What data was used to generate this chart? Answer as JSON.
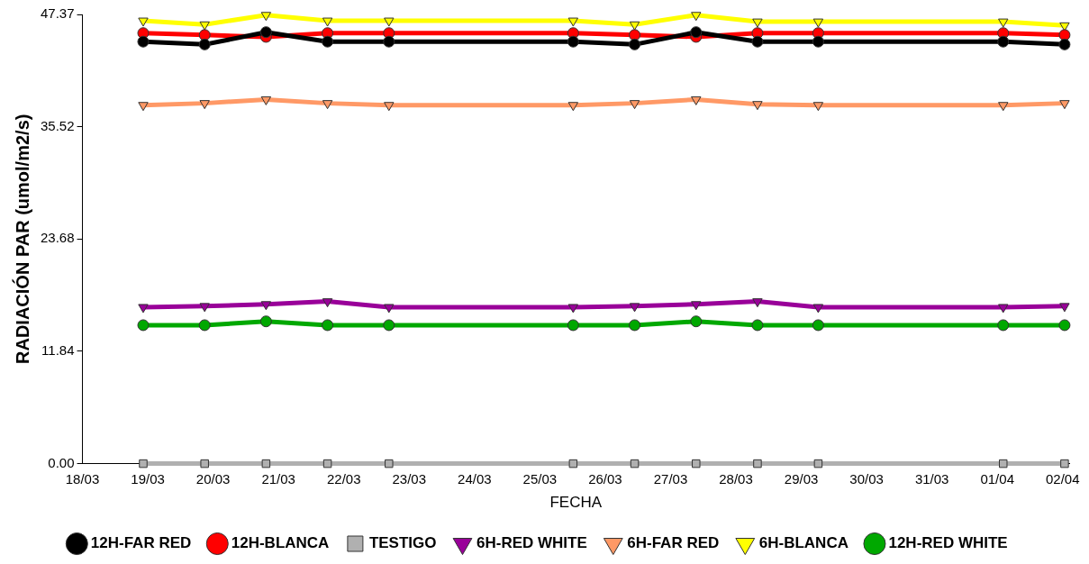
{
  "chart_data": {
    "type": "line",
    "xlabel": "FECHA",
    "ylabel": "RADIACIÓN PAR (umol/m2/s)",
    "x": [
      "--03-18T22:19",
      "--03-19T20:53",
      "--03-20T19:26",
      "--03-21T18:00",
      "--03-22T16:34",
      "--03-25T12:14",
      "--03-26T10:48",
      "--03-27T09:22",
      "--03-28T07:55",
      "--03-29T06:14",
      "--04-01T02:10",
      "--04-02T00:43"
    ],
    "xlim": [
      "--03-18",
      "--04-02T02:24"
    ],
    "xticks": [
      {
        "value": "--03-18",
        "label": "18/03"
      },
      {
        "value": "--03-19",
        "label": "19/03"
      },
      {
        "value": "--03-20",
        "label": "20/03"
      },
      {
        "value": "--03-21",
        "label": "21/03"
      },
      {
        "value": "--03-22",
        "label": "22/03"
      },
      {
        "value": "--03-23",
        "label": "23/03"
      },
      {
        "value": "--03-24",
        "label": "24/03"
      },
      {
        "value": "--03-25",
        "label": "25/03"
      },
      {
        "value": "--03-26",
        "label": "26/03"
      },
      {
        "value": "--03-27",
        "label": "27/03"
      },
      {
        "value": "--03-28",
        "label": "28/03"
      },
      {
        "value": "--03-29",
        "label": "29/03"
      },
      {
        "value": "--03-30",
        "label": "30/03"
      },
      {
        "value": "--03-31",
        "label": "31/03"
      },
      {
        "value": "--04-01",
        "label": "01/04"
      },
      {
        "value": "--04-02",
        "label": "02/04"
      }
    ],
    "ylim": [
      0,
      47.37
    ],
    "yticks": [
      {
        "value": 0,
        "label": "0.00"
      },
      11.84,
      23.68,
      35.52,
      47.37
    ],
    "grid": false,
    "legend": "bottom",
    "series": [
      {
        "name": "12H-RED WHITE",
        "color": "#00a800",
        "marker": "circle",
        "values": [
          14.6,
          14.6,
          15.0,
          14.6,
          14.6,
          14.6,
          14.6,
          15.0,
          14.6,
          14.6,
          14.6,
          14.6
        ]
      },
      {
        "name": "6H-BLANCA",
        "color": "#ffff00",
        "marker": "triangle",
        "values": [
          46.7,
          46.3,
          47.3,
          46.7,
          46.7,
          46.7,
          46.3,
          47.3,
          46.6,
          46.6,
          46.6,
          46.2
        ]
      },
      {
        "name": "6H-FAR RED",
        "color": "#ff9966",
        "marker": "triangle",
        "values": [
          37.8,
          38.0,
          38.4,
          38.0,
          37.8,
          37.8,
          38.0,
          38.4,
          37.9,
          37.8,
          37.8,
          38.0
        ]
      },
      {
        "name": "6H-RED WHITE",
        "color": "#990099",
        "marker": "triangle",
        "values": [
          16.5,
          16.6,
          16.8,
          17.1,
          16.5,
          16.5,
          16.6,
          16.8,
          17.1,
          16.5,
          16.5,
          16.6
        ]
      },
      {
        "name": "TESTIGO",
        "color": "#b0b0b0",
        "marker": "square",
        "values": [
          0,
          0,
          0,
          0,
          0,
          0,
          0,
          0,
          0,
          0,
          0,
          0
        ]
      },
      {
        "name": "12H-BLANCA",
        "color": "#ff0000",
        "marker": "circle",
        "values": [
          45.4,
          45.2,
          45.0,
          45.4,
          45.4,
          45.4,
          45.2,
          45.0,
          45.4,
          45.4,
          45.4,
          45.2
        ]
      },
      {
        "name": "12H-FAR RED",
        "color": "#000000",
        "marker": "circle",
        "values": [
          44.5,
          44.2,
          45.5,
          44.5,
          44.5,
          44.5,
          44.2,
          45.5,
          44.5,
          44.5,
          44.5,
          44.2
        ]
      }
    ]
  }
}
